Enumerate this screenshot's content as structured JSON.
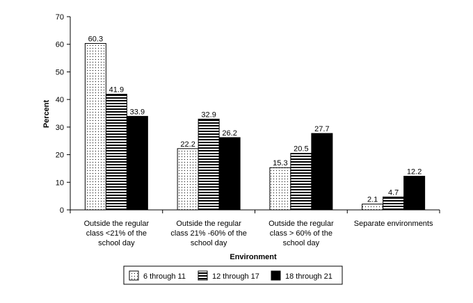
{
  "chart_data": {
    "type": "bar",
    "title": "",
    "xlabel": "Environment",
    "ylabel": "Percent",
    "ylim": [
      0,
      70
    ],
    "yticks": [
      0,
      10,
      20,
      30,
      40,
      50,
      60,
      70
    ],
    "grid": false,
    "legend_position": "bottom",
    "categories": [
      [
        "Outside the regular",
        "class <21% of the",
        "school day"
      ],
      [
        "Outside the regular",
        "class 21% -60% of the",
        "school day"
      ],
      [
        "Outside the regular",
        "class > 60% of the",
        "school day"
      ],
      [
        "Separate environments"
      ]
    ],
    "series": [
      {
        "name": "6 through 11",
        "pattern": "dots",
        "values": [
          60.3,
          22.2,
          15.3,
          2.1
        ]
      },
      {
        "name": "12 through 17",
        "pattern": "horizontal-stripes",
        "values": [
          41.9,
          32.9,
          20.5,
          4.7
        ]
      },
      {
        "name": "18 through 21",
        "pattern": "solid-black",
        "values": [
          33.9,
          26.2,
          27.7,
          12.2
        ]
      }
    ]
  }
}
